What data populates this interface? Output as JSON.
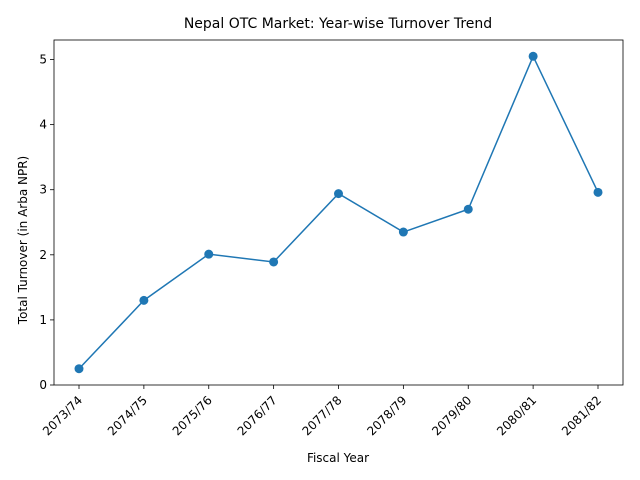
{
  "chart_data": {
    "type": "line",
    "title": "Nepal OTC Market: Year-wise Turnover Trend",
    "xlabel": "Fiscal Year",
    "ylabel": "Total Turnover (in Arba NPR)",
    "categories": [
      "2073/74",
      "2074/75",
      "2075/76",
      "2076/77",
      "2077/78",
      "2078/79",
      "2079/80",
      "2080/81",
      "2081/82"
    ],
    "values": [
      0.25,
      1.3,
      2.01,
      1.89,
      2.94,
      2.35,
      2.7,
      5.05,
      2.96
    ],
    "ylim": [
      0,
      5.3
    ],
    "yticks": [
      0,
      1,
      2,
      3,
      4,
      5
    ],
    "grid": false,
    "legend": "none",
    "series_color": "#1f77b4",
    "marker": "circle"
  }
}
